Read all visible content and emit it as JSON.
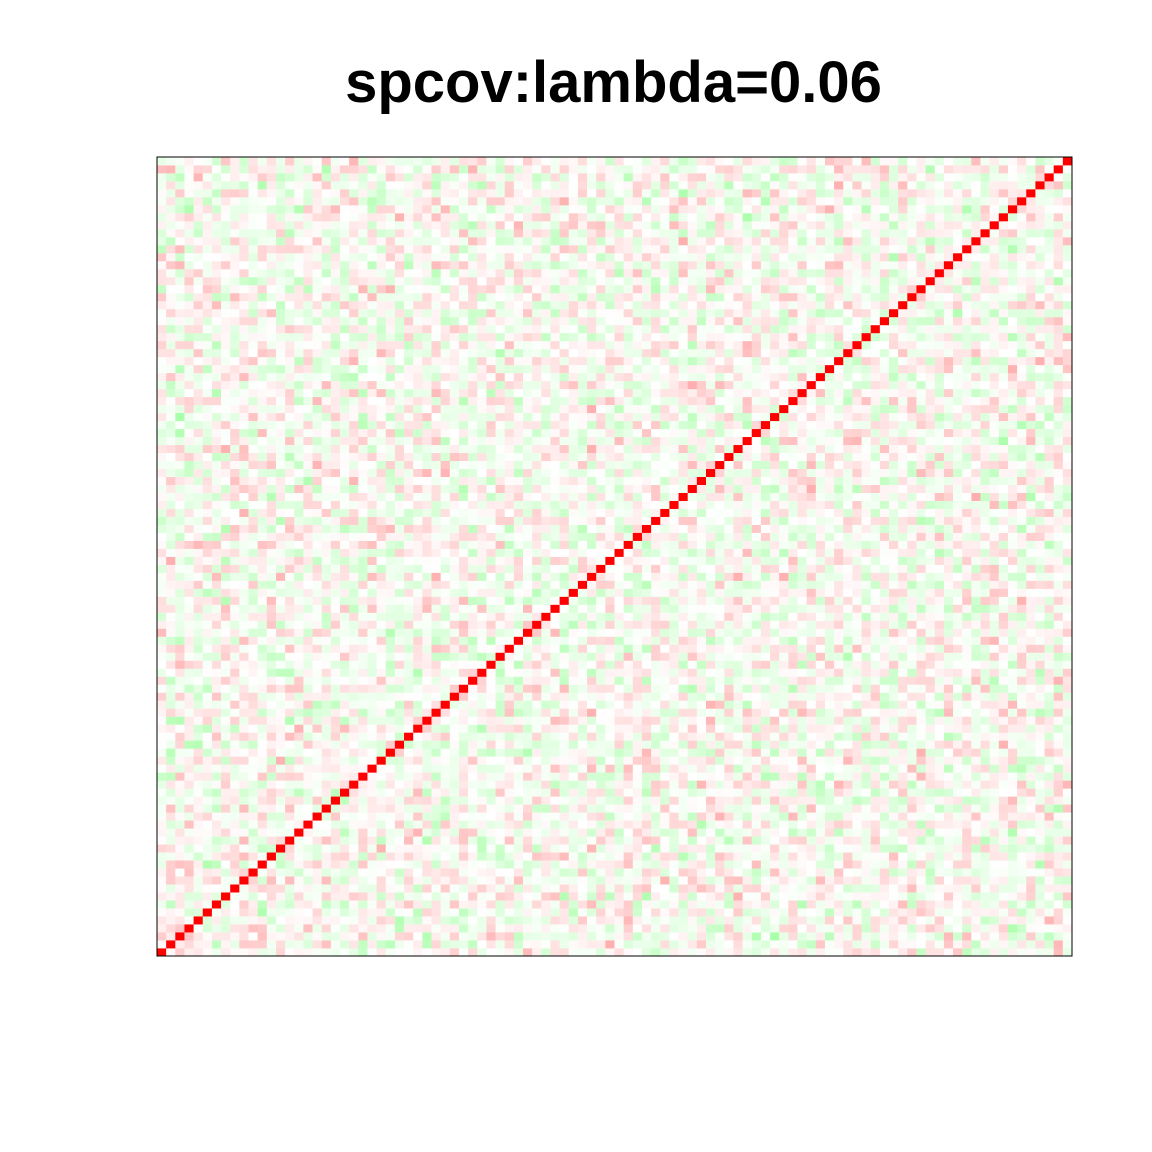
{
  "chart_data": {
    "type": "heatmap",
    "title": "spcov:lambda=0.06",
    "n": 100,
    "diagonal_value": 1.0,
    "off_diagonal_range": [
      -0.35,
      0.35
    ],
    "colors": {
      "positive": "#ff0000",
      "zero": "#ffffff",
      "negative": "#00ff00",
      "frame": "#000000"
    },
    "axes_shown": false
  }
}
